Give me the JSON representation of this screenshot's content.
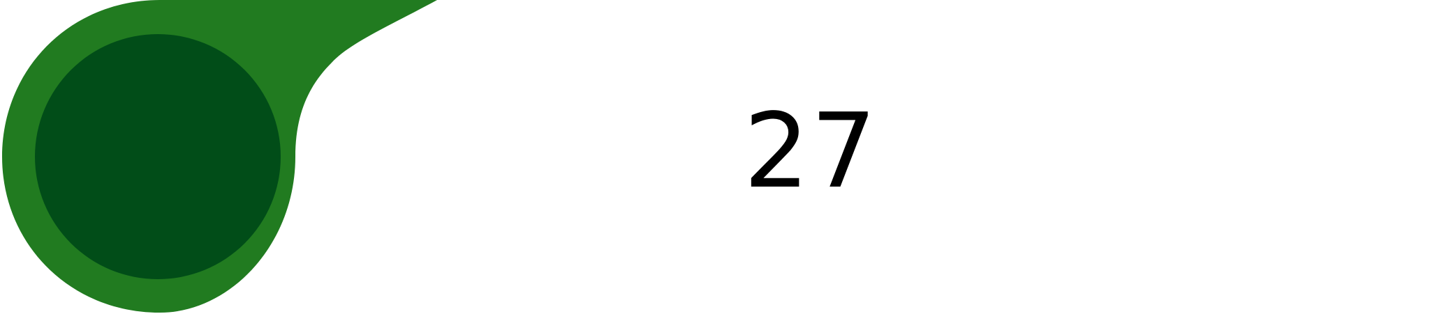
{
  "colors": {
    "outer_shape": "#217b20",
    "inner_circle": "#014d18",
    "number": "#000000",
    "background": "#ffffff"
  },
  "badge": {
    "icon": "teardrop-badge-icon"
  },
  "value": {
    "number": "27"
  }
}
